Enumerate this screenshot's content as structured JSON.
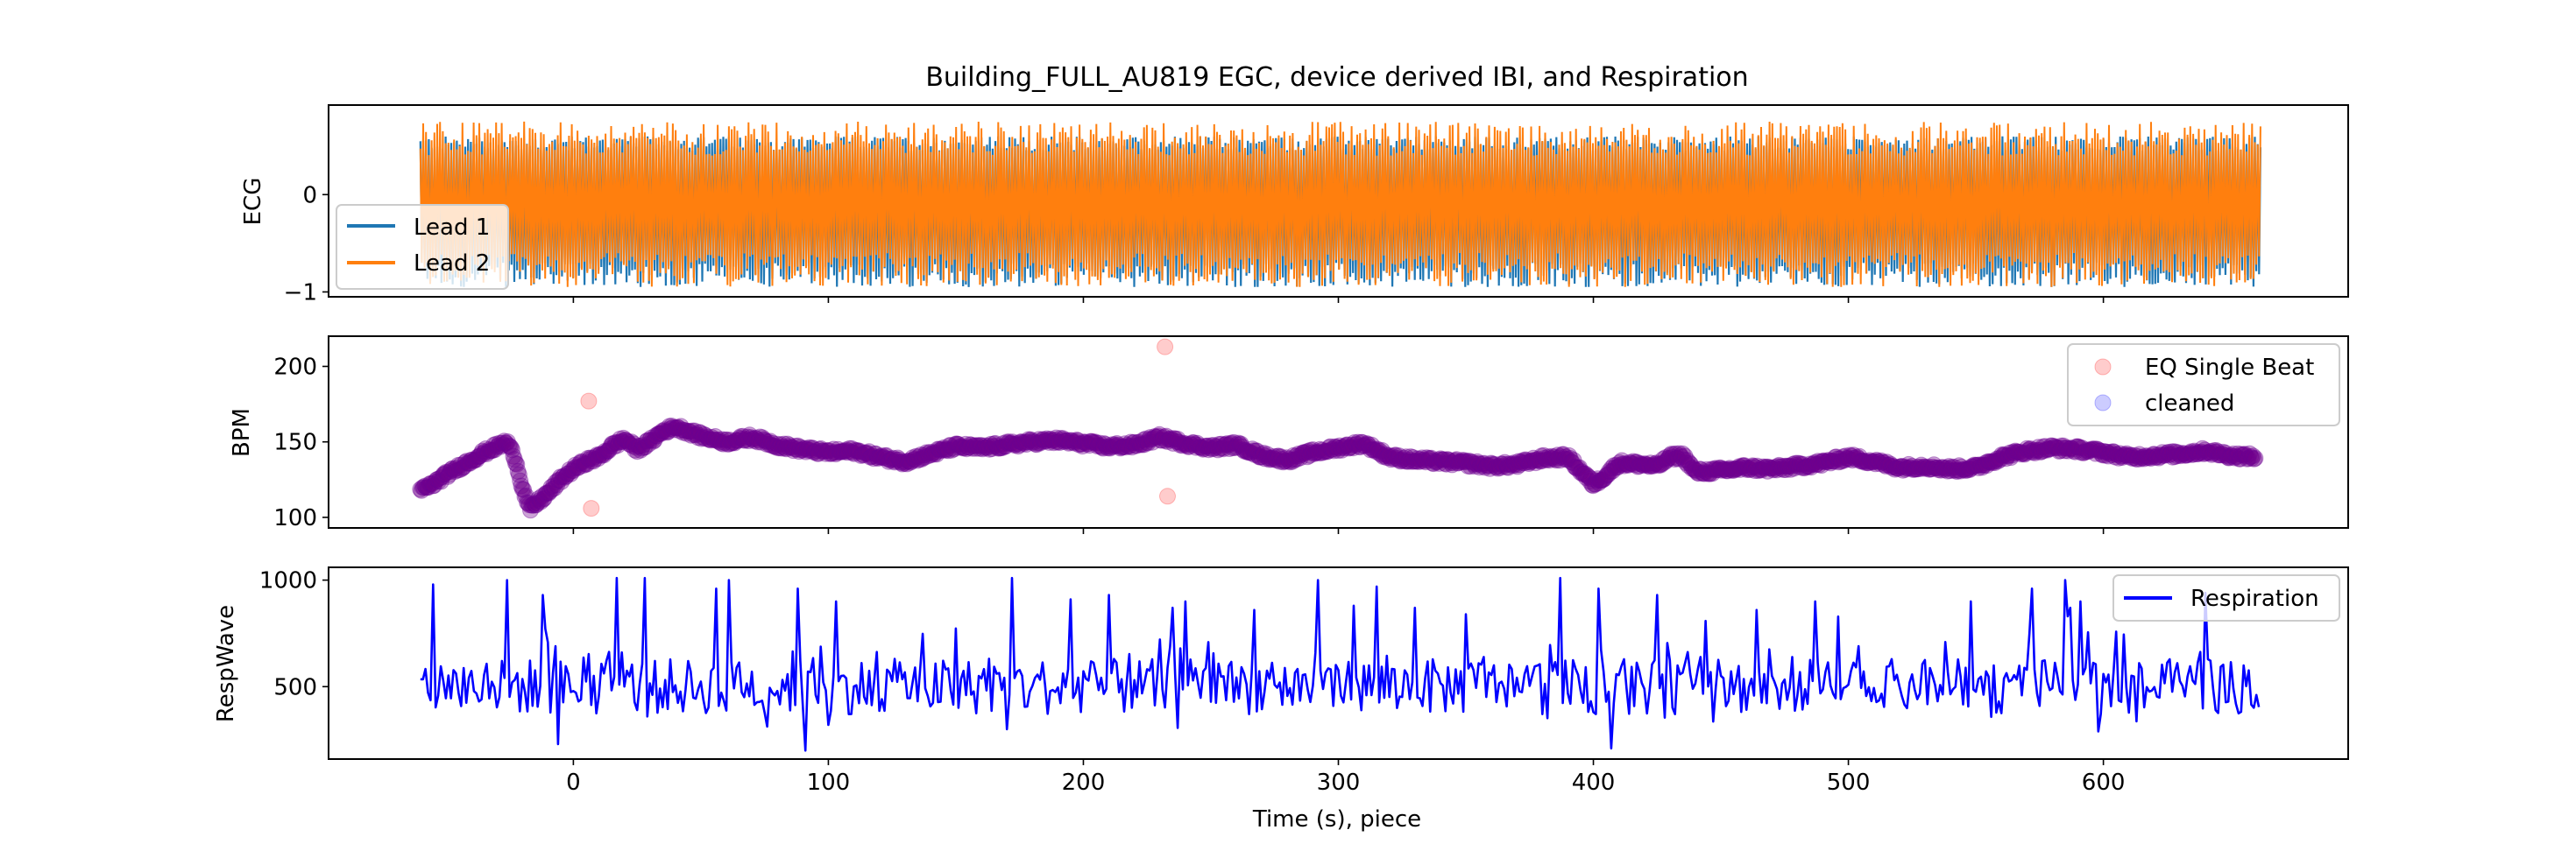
{
  "figure": {
    "title": "Building_FULL_AU819 EGC, device derived IBI, and Respiration",
    "xlabel": "Time (s), piece",
    "x_ticks": [
      0,
      100,
      200,
      300,
      400,
      500,
      600
    ],
    "xlim": [
      -96,
      696
    ]
  },
  "chart_data": [
    {
      "type": "line",
      "panel": "ecg",
      "ylabel": "ECG",
      "ylim": [
        -1.05,
        0.92
      ],
      "y_ticks": [
        -1,
        0
      ],
      "x_range": [
        -60,
        662
      ],
      "legend": {
        "placement": "lower-left",
        "entries": [
          "Lead 1",
          "Lead 2"
        ]
      },
      "series": [
        {
          "name": "Lead 1",
          "color": "#1f77b4",
          "envelope_max": [
            0.45,
            0.6
          ],
          "envelope_min": [
            -0.95,
            -0.7
          ]
        },
        {
          "name": "Lead 2",
          "color": "#ff7f0e",
          "envelope_max": [
            0.4,
            0.75
          ],
          "envelope_min": [
            -0.95,
            -0.6
          ]
        }
      ]
    },
    {
      "type": "scatter",
      "panel": "bpm",
      "ylabel": "BPM",
      "ylim": [
        93,
        220
      ],
      "y_ticks": [
        100,
        150,
        200
      ],
      "legend": {
        "placement": "upper-right",
        "entries": [
          "EQ Single Beat",
          "cleaned"
        ]
      },
      "series": [
        {
          "name": "EQ Single Beat",
          "color": "#ff0000",
          "outliers": [
            [
              6,
              177
            ],
            [
              7,
              106
            ],
            [
              232,
              213
            ],
            [
              233,
              114
            ]
          ]
        },
        {
          "name": "cleaned",
          "color": "#0000ff"
        }
      ],
      "trend": [
        [
          -60,
          118
        ],
        [
          -55,
          122
        ],
        [
          -50,
          128
        ],
        [
          -45,
          133
        ],
        [
          -40,
          138
        ],
        [
          -35,
          143
        ],
        [
          -30,
          147
        ],
        [
          -26,
          150
        ],
        [
          -23,
          140
        ],
        [
          -20,
          120
        ],
        [
          -17,
          105
        ],
        [
          -14,
          110
        ],
        [
          -10,
          116
        ],
        [
          -5,
          125
        ],
        [
          0,
          132
        ],
        [
          5,
          137
        ],
        [
          10,
          140
        ],
        [
          15,
          147
        ],
        [
          20,
          152
        ],
        [
          25,
          145
        ],
        [
          30,
          150
        ],
        [
          35,
          157
        ],
        [
          40,
          160
        ],
        [
          50,
          154
        ],
        [
          60,
          150
        ],
        [
          70,
          153
        ],
        [
          80,
          148
        ],
        [
          90,
          145
        ],
        [
          100,
          143
        ],
        [
          110,
          144
        ],
        [
          120,
          140
        ],
        [
          130,
          137
        ],
        [
          140,
          142
        ],
        [
          150,
          147
        ],
        [
          160,
          146
        ],
        [
          170,
          148
        ],
        [
          180,
          150
        ],
        [
          190,
          151
        ],
        [
          200,
          149
        ],
        [
          210,
          147
        ],
        [
          220,
          148
        ],
        [
          230,
          153
        ],
        [
          240,
          149
        ],
        [
          250,
          146
        ],
        [
          260,
          148
        ],
        [
          270,
          141
        ],
        [
          280,
          138
        ],
        [
          290,
          143
        ],
        [
          300,
          146
        ],
        [
          310,
          149
        ],
        [
          320,
          140
        ],
        [
          330,
          138
        ],
        [
          340,
          137
        ],
        [
          350,
          136
        ],
        [
          360,
          134
        ],
        [
          370,
          135
        ],
        [
          380,
          139
        ],
        [
          390,
          140
        ],
        [
          395,
          131
        ],
        [
          400,
          122
        ],
        [
          405,
          128
        ],
        [
          410,
          136
        ],
        [
          420,
          135
        ],
        [
          425,
          134
        ],
        [
          430,
          140
        ],
        [
          435,
          141
        ],
        [
          440,
          130
        ],
        [
          450,
          131
        ],
        [
          460,
          133
        ],
        [
          470,
          132
        ],
        [
          480,
          134
        ],
        [
          490,
          136
        ],
        [
          500,
          140
        ],
        [
          510,
          137
        ],
        [
          520,
          133
        ],
        [
          530,
          134
        ],
        [
          540,
          132
        ],
        [
          550,
          133
        ],
        [
          560,
          140
        ],
        [
          570,
          144
        ],
        [
          580,
          146
        ],
        [
          590,
          145
        ],
        [
          600,
          143
        ],
        [
          610,
          140
        ],
        [
          620,
          141
        ],
        [
          630,
          142
        ],
        [
          640,
          144
        ],
        [
          650,
          141
        ],
        [
          660,
          140
        ]
      ]
    },
    {
      "type": "line",
      "panel": "resp",
      "ylabel": "RespWave",
      "ylim": [
        160,
        1060
      ],
      "y_ticks": [
        500,
        1000
      ],
      "legend": {
        "placement": "upper-right",
        "entries": [
          "Respiration"
        ]
      },
      "series": [
        {
          "name": "Respiration",
          "color": "#0000ff",
          "x_range": [
            -60,
            661
          ],
          "baseline": 500,
          "peaks": [
            [
              -55,
              980
            ],
            [
              -26,
              1000
            ],
            [
              -12,
              930
            ],
            [
              -6,
              230
            ],
            [
              17,
              1010
            ],
            [
              28,
              1010
            ],
            [
              56,
              960
            ],
            [
              61,
              1000
            ],
            [
              88,
              960
            ],
            [
              91,
              200
            ],
            [
              103,
              900
            ],
            [
              172,
              1010
            ],
            [
              170,
              300
            ],
            [
              195,
              910
            ],
            [
              210,
              930
            ],
            [
              235,
              870
            ],
            [
              240,
              900
            ],
            [
              267,
              860
            ],
            [
              292,
              1000
            ],
            [
              306,
              880
            ],
            [
              315,
              970
            ],
            [
              330,
              870
            ],
            [
              350,
              840
            ],
            [
              387,
              1010
            ],
            [
              402,
              960
            ],
            [
              407,
              210
            ],
            [
              425,
              930
            ],
            [
              464,
              860
            ],
            [
              487,
              900
            ],
            [
              548,
              900
            ],
            [
              572,
              960
            ],
            [
              585,
              1000
            ],
            [
              591,
              900
            ],
            [
              587,
              870
            ],
            [
              640,
              940
            ]
          ]
        }
      ]
    }
  ]
}
